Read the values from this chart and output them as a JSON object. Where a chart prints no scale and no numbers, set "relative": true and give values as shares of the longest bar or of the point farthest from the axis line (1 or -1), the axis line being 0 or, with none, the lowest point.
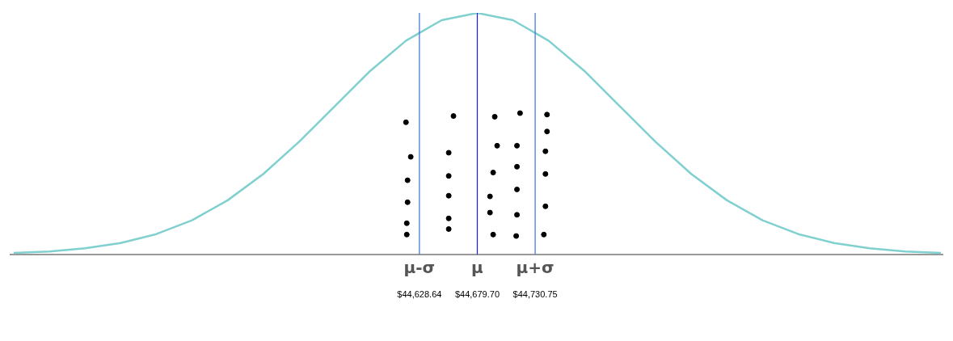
{
  "chart_data": {
    "type": "line",
    "relative": true,
    "xlim": [
      44268,
      45090
    ],
    "xticks": [
      {
        "value": 44628.64,
        "label": "$44,628.64"
      },
      {
        "value": 44679.7,
        "label": "$44,679.70"
      },
      {
        "value": 44730.75,
        "label": "$44,730.75"
      }
    ],
    "series": [
      {
        "type": "line",
        "color": "#80d0d0",
        "marker": "none",
        "x": [
          44270.8,
          44302.2,
          44333.7,
          44365.1,
          44396.6,
          44428.1,
          44459.5,
          44491.0,
          44522.4,
          44553.9,
          44585.3,
          44616.8,
          44648.2,
          44679.7,
          44711.2,
          44742.6,
          44774.1,
          44805.5,
          44837.0,
          44868.4,
          44899.9,
          44931.3,
          44962.8,
          44994.3,
          45025.7,
          45057.2,
          45088.6
        ],
        "values": [
          0.006,
          0.012,
          0.025,
          0.047,
          0.084,
          0.141,
          0.224,
          0.333,
          0.466,
          0.613,
          0.76,
          0.885,
          0.97,
          1,
          0.97,
          0.885,
          0.76,
          0.613,
          0.466,
          0.333,
          0.224,
          0.141,
          0.084,
          0.047,
          0.025,
          0.012,
          0.006
        ]
      },
      {
        "type": "scatter",
        "color": "#000000",
        "marker": "circle",
        "x": [
          44616.8,
          44621.0,
          44618.2,
          44618.2,
          44617.5,
          44617.5,
          44658.7,
          44654.5,
          44654.5,
          44654.5,
          44654.5,
          44654.5,
          44695.1,
          44697.2,
          44693.7,
          44690.9,
          44690.9,
          44693.7,
          44717.4,
          44714.7,
          44714.7,
          44714.7,
          44714.7,
          44714.0,
          44741.2,
          44741.2,
          44739.8,
          44739.8,
          44739.8,
          44738.4
        ],
        "values": [
          0.547,
          0.404,
          0.307,
          0.216,
          0.129,
          0.082,
          0.573,
          0.421,
          0.325,
          0.243,
          0.149,
          0.105,
          0.57,
          0.45,
          0.339,
          0.24,
          0.173,
          0.082,
          0.585,
          0.45,
          0.363,
          0.269,
          0.164,
          0.076,
          0.579,
          0.509,
          0.427,
          0.333,
          0.199,
          0.082
        ]
      }
    ],
    "ref_lines": [
      {
        "axis": "x",
        "value": 44628.64,
        "label": "μ-σ",
        "color": "#3a6fd8"
      },
      {
        "axis": "x",
        "value": 44679.7,
        "label": "μ",
        "color": "#1a1aee"
      },
      {
        "axis": "x",
        "value": 44730.75,
        "label": "μ+σ",
        "color": "#3a6fd8"
      }
    ]
  }
}
